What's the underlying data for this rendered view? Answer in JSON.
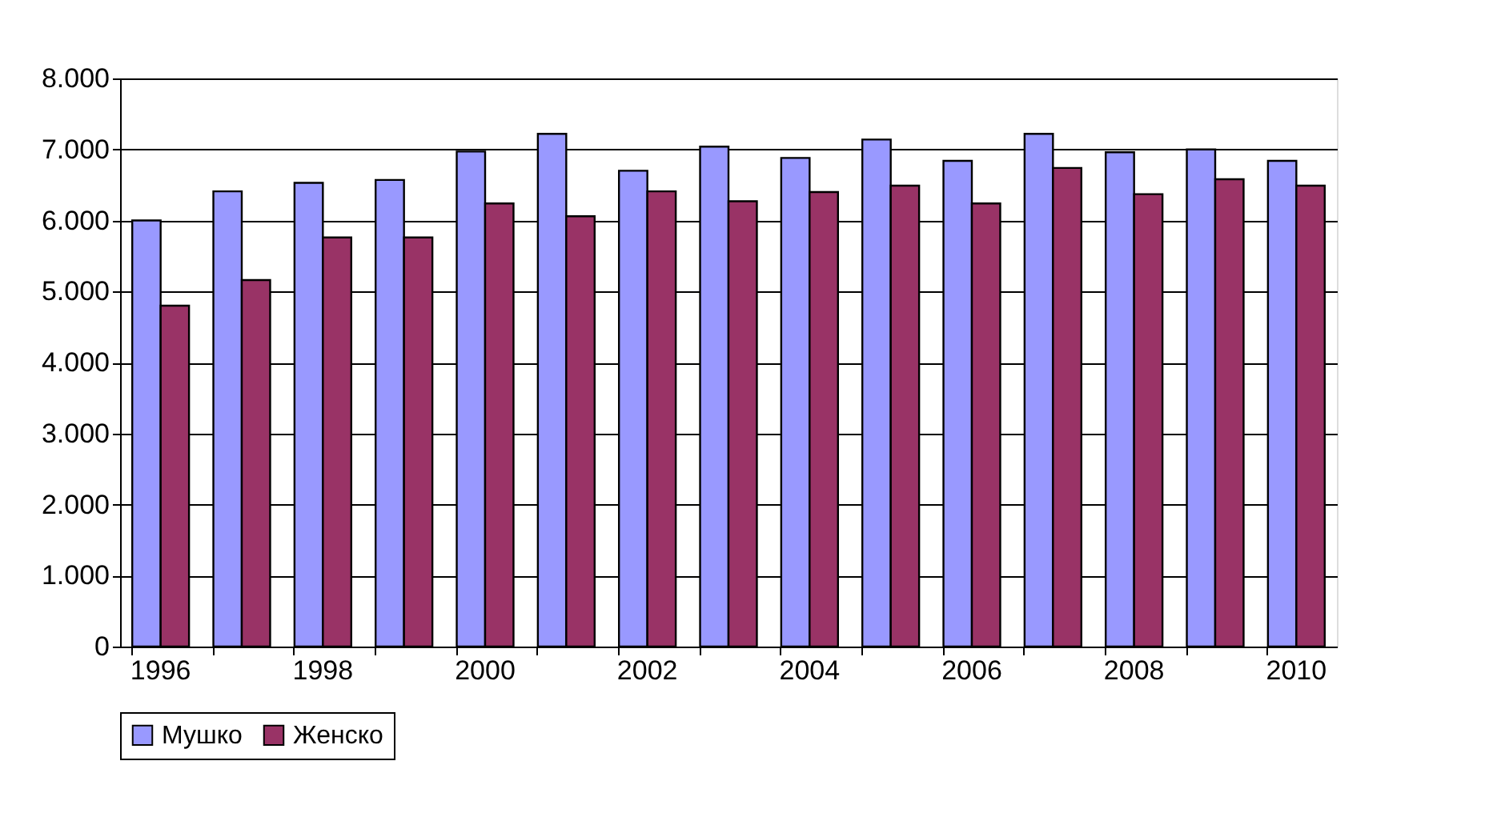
{
  "chart_data": {
    "type": "bar",
    "categories": [
      "1996",
      null,
      "1998",
      null,
      "2000",
      null,
      "2002",
      null,
      "2004",
      null,
      "2006",
      null,
      "2008",
      null,
      "2010"
    ],
    "series": [
      {
        "name": "Мушко",
        "color": "#9999ff",
        "values": [
          6000,
          6410,
          6530,
          6570,
          6970,
          7220,
          6700,
          7040,
          6880,
          7140,
          6840,
          7220,
          6960,
          7000,
          6840
        ]
      },
      {
        "name": "Женско",
        "color": "#993366",
        "values": [
          4800,
          5160,
          5760,
          5760,
          6240,
          6060,
          6410,
          6270,
          6400,
          6490,
          6240,
          6740,
          6370,
          6580,
          6490
        ]
      }
    ],
    "ylim": [
      0,
      8000
    ],
    "yticks": [
      0,
      {
        "value": 1000,
        "label": "1.000"
      },
      {
        "value": 2000,
        "label": "2.000"
      },
      {
        "value": 3000,
        "label": "3.000"
      },
      {
        "value": 4000,
        "label": "4.000"
      },
      {
        "value": 5000,
        "label": "5.000"
      },
      {
        "value": 6000,
        "label": "6.000"
      },
      {
        "value": 7000,
        "label": "7.000"
      },
      {
        "value": 8000,
        "label": "8.000"
      }
    ],
    "grid": "y",
    "legend": "bottom"
  }
}
